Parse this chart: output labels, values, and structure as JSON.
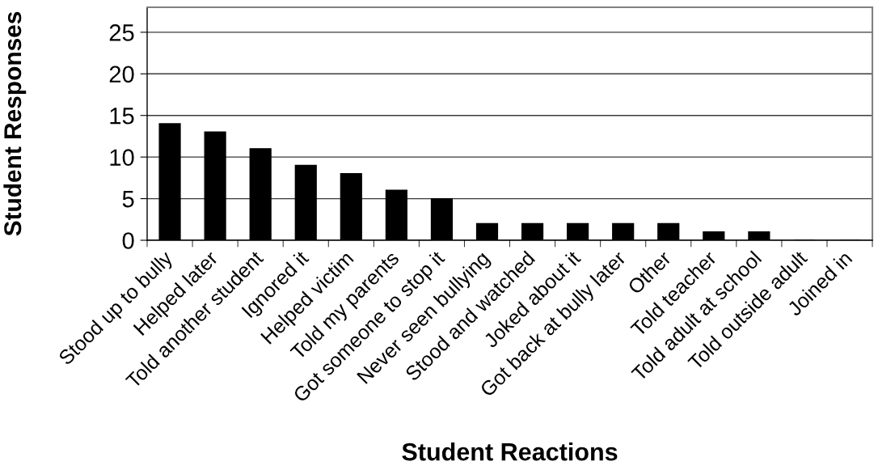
{
  "chart_data": {
    "type": "bar",
    "xlabel": "Student Reactions",
    "ylabel": "Student Responses",
    "categories": [
      "Stood up to bully",
      "Helped later",
      "Told another student",
      "Ignored it",
      "Helped victim",
      "Told my parents",
      "Got someone to stop it",
      "Never seen bullying",
      "Stood and watched",
      "Joked about it",
      "Got back at bully later",
      "Other",
      "Told teacher",
      "Told adult at school",
      "Told outside adult",
      "Joined in"
    ],
    "values": [
      14,
      13,
      11,
      9,
      8,
      6,
      5,
      2,
      2,
      2,
      2,
      2,
      1,
      1,
      0,
      0
    ],
    "color": "#000000",
    "ylim": [
      0,
      28
    ],
    "yticks": [
      0,
      5,
      10,
      15,
      20,
      25
    ],
    "grid": "y"
  }
}
